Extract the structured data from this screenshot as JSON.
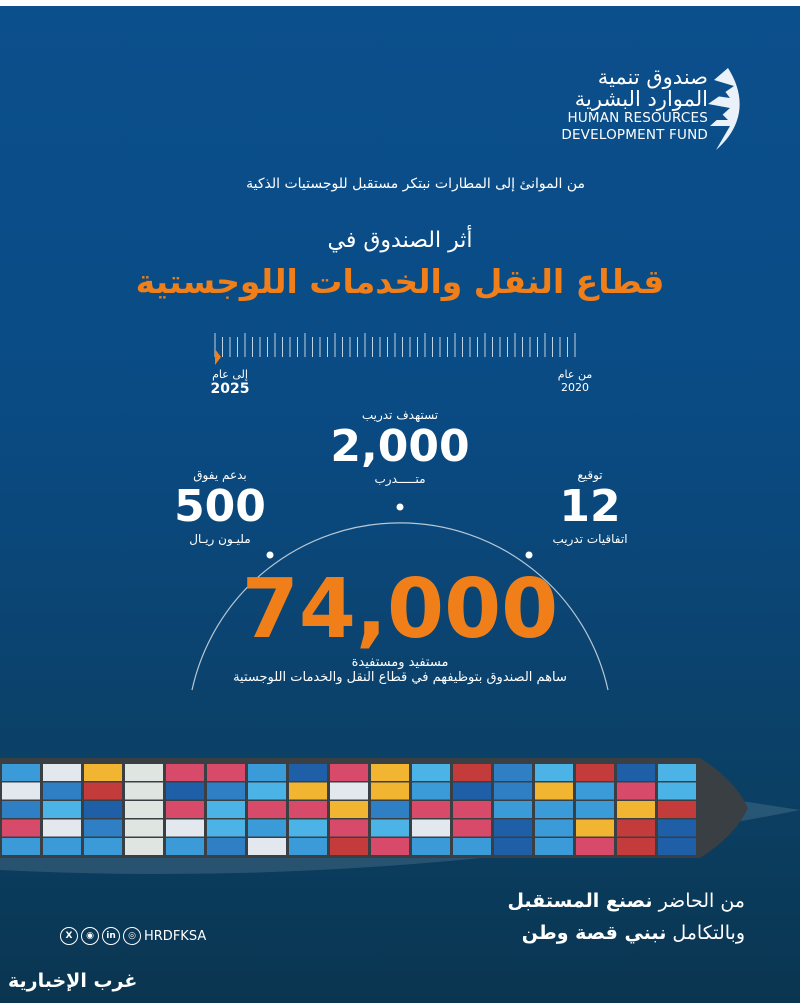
{
  "logo": {
    "arabic_line1": "صندوق تنمية",
    "arabic_line2": "الموارد البشرية",
    "english_line1": "HUMAN RESOURCES",
    "english_line2": "DEVELOPMENT FUND"
  },
  "tagline": "من الموانئ إلى المطارات نبتكر مستقبل للوجستيات الذكية",
  "subtitle": "أثر الصندوق في",
  "title": "قطاع النقل والخدمات اللوجستية",
  "timeline": {
    "start_label": "من عام",
    "start_year": "2020",
    "end_label": "إلى عام",
    "end_year": "2025"
  },
  "stats": {
    "trainees": {
      "caption": "تستهدف تدريب",
      "value": "2,000",
      "unit": "متـــــدرب"
    },
    "support": {
      "caption": "بدعم يفوق",
      "value": "500",
      "unit": "مليـون ريـال"
    },
    "agreements": {
      "caption": "توقيع",
      "value": "12",
      "unit": "اتفاقيات تدريب"
    },
    "beneficiaries": {
      "value": "74,000",
      "unit": "مستفيد ومستفيدة",
      "note": "ساهم الصندوق بتوظيفهم في قطاع النقل والخدمات اللوجستية"
    }
  },
  "slogan": {
    "line1_regular": "من الحاضر ",
    "line1_bold": "نصنع المستقبل",
    "line2_regular": "وبالتكامل ",
    "line2_bold": "نبني قصة وطن"
  },
  "social": {
    "handle": "HRDFKSA",
    "icons": [
      "x-icon",
      "snapchat-icon",
      "linkedin-icon",
      "instagram-icon"
    ]
  },
  "watermark": "غرب الإخبارية",
  "colors": {
    "accent": "#f07f1a",
    "background": "#0b4f8c"
  }
}
